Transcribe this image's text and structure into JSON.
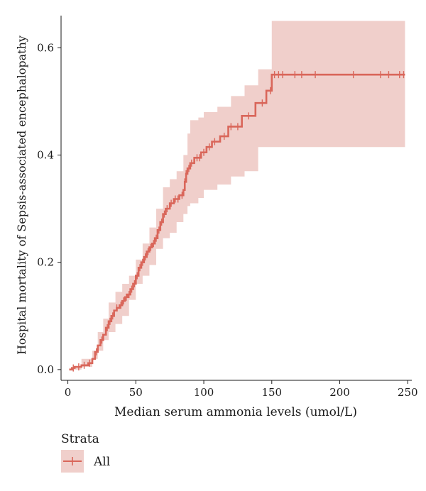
{
  "chart_data": {
    "type": "line",
    "title": "",
    "xlabel": "Median serum ammonia levels (umol/L)",
    "ylabel": "Hospital mortality of Sepsis-associated encephalopathy",
    "xlim": [
      -5,
      253
    ],
    "ylim": [
      -0.02,
      0.66
    ],
    "x_ticks": [
      0,
      50,
      100,
      150,
      200,
      250
    ],
    "y_ticks": [
      0.0,
      0.2,
      0.4,
      0.6
    ],
    "x_tick_labels": [
      "0",
      "50",
      "100",
      "150",
      "200",
      "250"
    ],
    "y_tick_labels": [
      "0.0",
      "0.2",
      "0.4",
      "0.6"
    ],
    "grid": false,
    "legend": {
      "title": "Strata",
      "position": "bottom-left",
      "entries": [
        "All"
      ]
    },
    "series": [
      {
        "name": "All",
        "color": "#d9665a",
        "band_color": "#f0cfcb",
        "step": [
          [
            1,
            0.0
          ],
          [
            3,
            0.003
          ],
          [
            5,
            0.005
          ],
          [
            10,
            0.008
          ],
          [
            15,
            0.012
          ],
          [
            18,
            0.02
          ],
          [
            20,
            0.033
          ],
          [
            22,
            0.045
          ],
          [
            24,
            0.055
          ],
          [
            26,
            0.065
          ],
          [
            28,
            0.078
          ],
          [
            30,
            0.09
          ],
          [
            32,
            0.1
          ],
          [
            34,
            0.11
          ],
          [
            36,
            0.115
          ],
          [
            38,
            0.12
          ],
          [
            40,
            0.128
          ],
          [
            42,
            0.135
          ],
          [
            44,
            0.14
          ],
          [
            46,
            0.15
          ],
          [
            48,
            0.16
          ],
          [
            50,
            0.175
          ],
          [
            52,
            0.19
          ],
          [
            54,
            0.2
          ],
          [
            56,
            0.21
          ],
          [
            58,
            0.22
          ],
          [
            60,
            0.228
          ],
          [
            62,
            0.235
          ],
          [
            64,
            0.245
          ],
          [
            66,
            0.26
          ],
          [
            68,
            0.275
          ],
          [
            70,
            0.29
          ],
          [
            72,
            0.3
          ],
          [
            75,
            0.31
          ],
          [
            78,
            0.318
          ],
          [
            82,
            0.325
          ],
          [
            85,
            0.335
          ],
          [
            86,
            0.35
          ],
          [
            87,
            0.365
          ],
          [
            88,
            0.375
          ],
          [
            90,
            0.385
          ],
          [
            93,
            0.395
          ],
          [
            98,
            0.405
          ],
          [
            102,
            0.415
          ],
          [
            106,
            0.425
          ],
          [
            112,
            0.435
          ],
          [
            118,
            0.453
          ],
          [
            128,
            0.473
          ],
          [
            138,
            0.497
          ],
          [
            146,
            0.52
          ],
          [
            150,
            0.55
          ],
          [
            248,
            0.55
          ]
        ],
        "upper": [
          [
            1,
            0.003
          ],
          [
            10,
            0.02
          ],
          [
            18,
            0.035
          ],
          [
            22,
            0.07
          ],
          [
            26,
            0.095
          ],
          [
            30,
            0.125
          ],
          [
            35,
            0.145
          ],
          [
            40,
            0.16
          ],
          [
            45,
            0.175
          ],
          [
            50,
            0.205
          ],
          [
            55,
            0.235
          ],
          [
            60,
            0.265
          ],
          [
            65,
            0.3
          ],
          [
            70,
            0.34
          ],
          [
            75,
            0.355
          ],
          [
            80,
            0.37
          ],
          [
            85,
            0.4
          ],
          [
            88,
            0.44
          ],
          [
            90,
            0.465
          ],
          [
            96,
            0.47
          ],
          [
            100,
            0.48
          ],
          [
            110,
            0.49
          ],
          [
            120,
            0.51
          ],
          [
            130,
            0.53
          ],
          [
            140,
            0.56
          ],
          [
            150,
            0.65
          ],
          [
            248,
            0.65
          ]
        ],
        "lower": [
          [
            1,
            0.0
          ],
          [
            10,
            0.0
          ],
          [
            18,
            0.005
          ],
          [
            22,
            0.02
          ],
          [
            26,
            0.035
          ],
          [
            30,
            0.055
          ],
          [
            35,
            0.07
          ],
          [
            40,
            0.085
          ],
          [
            45,
            0.1
          ],
          [
            50,
            0.13
          ],
          [
            55,
            0.16
          ],
          [
            60,
            0.175
          ],
          [
            65,
            0.195
          ],
          [
            70,
            0.225
          ],
          [
            75,
            0.245
          ],
          [
            80,
            0.255
          ],
          [
            85,
            0.275
          ],
          [
            88,
            0.29
          ],
          [
            90,
            0.305
          ],
          [
            96,
            0.31
          ],
          [
            100,
            0.32
          ],
          [
            110,
            0.335
          ],
          [
            120,
            0.345
          ],
          [
            130,
            0.36
          ],
          [
            140,
            0.37
          ],
          [
            150,
            0.415
          ],
          [
            248,
            0.415
          ]
        ],
        "censor_x": [
          4,
          8,
          12,
          16,
          21,
          25,
          29,
          31,
          33,
          36,
          39,
          41,
          43,
          45,
          47,
          49,
          51,
          53,
          55,
          57,
          59,
          61,
          63,
          65,
          67,
          69,
          71,
          73,
          76,
          79,
          81,
          84,
          86,
          87,
          89,
          91,
          95,
          97,
          100,
          104,
          108,
          115,
          120,
          125,
          133,
          143,
          149,
          152,
          155,
          158,
          167,
          172,
          182,
          210,
          230,
          236,
          244,
          247
        ]
      }
    ]
  }
}
